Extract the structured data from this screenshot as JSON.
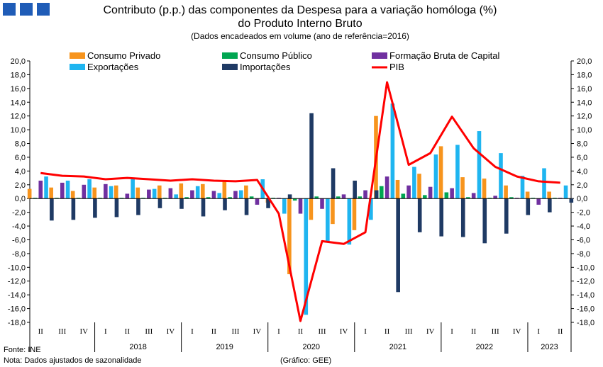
{
  "header": {
    "title_line1": "Contributo (p.p.) das componentes da Despesa para a variação homóloga (%)",
    "title_line2": "do Produto Interno Bruto",
    "subtitle": "(Dados encadeados em volume (ano de referência=2016)"
  },
  "footer": {
    "source": "Fonte: INE",
    "note": "Nota: Dados ajustados de sazonalidade",
    "credit": "(Gráfico: GEE)"
  },
  "chart_data": {
    "type": "bar",
    "ylim": [
      -18,
      20
    ],
    "ytick_step": 2,
    "ytick_labels": [
      "20,0",
      "18,0",
      "16,0",
      "14,0",
      "12,0",
      "10,0",
      "8,0",
      "6,0",
      "4,0",
      "2,0",
      "0,0",
      "-2,0",
      "-4,0",
      "-6,0",
      "-8,0",
      "-10,0",
      "-12,0",
      "-14,0",
      "-16,0",
      "-18,0"
    ],
    "categories": [
      "II",
      "III",
      "IV",
      "I",
      "II",
      "III",
      "IV",
      "I",
      "II",
      "III",
      "IV",
      "I",
      "II",
      "III",
      "IV",
      "I",
      "II",
      "III",
      "IV",
      "I",
      "II",
      "III",
      "IV",
      "I",
      "II"
    ],
    "years": [
      {
        "label": "",
        "span": 3
      },
      {
        "label": "2018",
        "span": 4
      },
      {
        "label": "2019",
        "span": 4
      },
      {
        "label": "2020",
        "span": 4
      },
      {
        "label": "2021",
        "span": 4
      },
      {
        "label": "2022",
        "span": 4
      },
      {
        "label": "2023",
        "span": 2
      }
    ],
    "series": [
      {
        "name": "Consumo Privado",
        "color": "#F7941D",
        "kind": "bar",
        "values": [
          1.4,
          1.6,
          1.1,
          1.6,
          1.9,
          1.6,
          1.9,
          2.2,
          2.1,
          2.5,
          1.9,
          -0.6,
          -11.0,
          -3.1,
          -3.7,
          -4.6,
          12.0,
          2.7,
          3.6,
          7.6,
          3.1,
          2.9,
          1.9,
          1.0,
          1.0
        ]
      },
      {
        "name": "Consumo Público",
        "color": "#00A651",
        "kind": "bar",
        "values": [
          0.1,
          0.1,
          0.1,
          0.1,
          0.1,
          0.1,
          0.1,
          0.2,
          0.2,
          0.2,
          0.3,
          0.1,
          -0.3,
          0.3,
          0.3,
          0.3,
          1.8,
          0.7,
          0.5,
          0.9,
          0.2,
          0.1,
          0.2,
          0.1,
          0.1
        ]
      },
      {
        "name": "Formação Bruta de Capital",
        "color": "#7030A0",
        "kind": "bar",
        "values": [
          2.6,
          2.3,
          2.0,
          2.1,
          0.7,
          1.3,
          1.5,
          1.2,
          1.1,
          1.1,
          -0.9,
          0.1,
          -2.2,
          -1.5,
          0.6,
          1.2,
          3.2,
          1.9,
          1.7,
          1.5,
          0.8,
          0.4,
          0.1,
          -0.9,
          0.1
        ]
      },
      {
        "name": "Exportações",
        "color": "#1FB5F0",
        "kind": "bar",
        "values": [
          3.2,
          2.6,
          2.8,
          1.8,
          2.9,
          1.4,
          0.6,
          1.8,
          0.8,
          1.2,
          2.8,
          -2.2,
          -16.9,
          -6.3,
          -6.7,
          -3.1,
          13.8,
          4.6,
          6.4,
          7.8,
          9.8,
          6.6,
          3.3,
          4.4,
          1.9
        ]
      },
      {
        "name": "Importações",
        "color": "#1F3A64",
        "kind": "bar",
        "values": [
          -3.2,
          -3.1,
          -2.8,
          -2.7,
          -2.4,
          -1.4,
          -1.5,
          -2.6,
          -1.7,
          -2.4,
          -1.4,
          0.6,
          12.4,
          4.4,
          2.6,
          1.2,
          -13.6,
          -4.9,
          -5.5,
          -5.6,
          -6.5,
          -5.1,
          -2.4,
          -2.0,
          -0.6
        ]
      },
      {
        "name": "PIB",
        "color": "#FF0000",
        "kind": "line",
        "values": [
          3.7,
          3.3,
          3.2,
          2.8,
          3.0,
          2.8,
          2.6,
          2.8,
          2.6,
          2.5,
          2.7,
          -2.2,
          -17.8,
          -6.2,
          -6.6,
          -4.9,
          16.9,
          4.9,
          6.6,
          11.9,
          7.3,
          4.6,
          3.2,
          2.5,
          2.3
        ]
      }
    ],
    "legend_position": "top",
    "grid": false
  }
}
